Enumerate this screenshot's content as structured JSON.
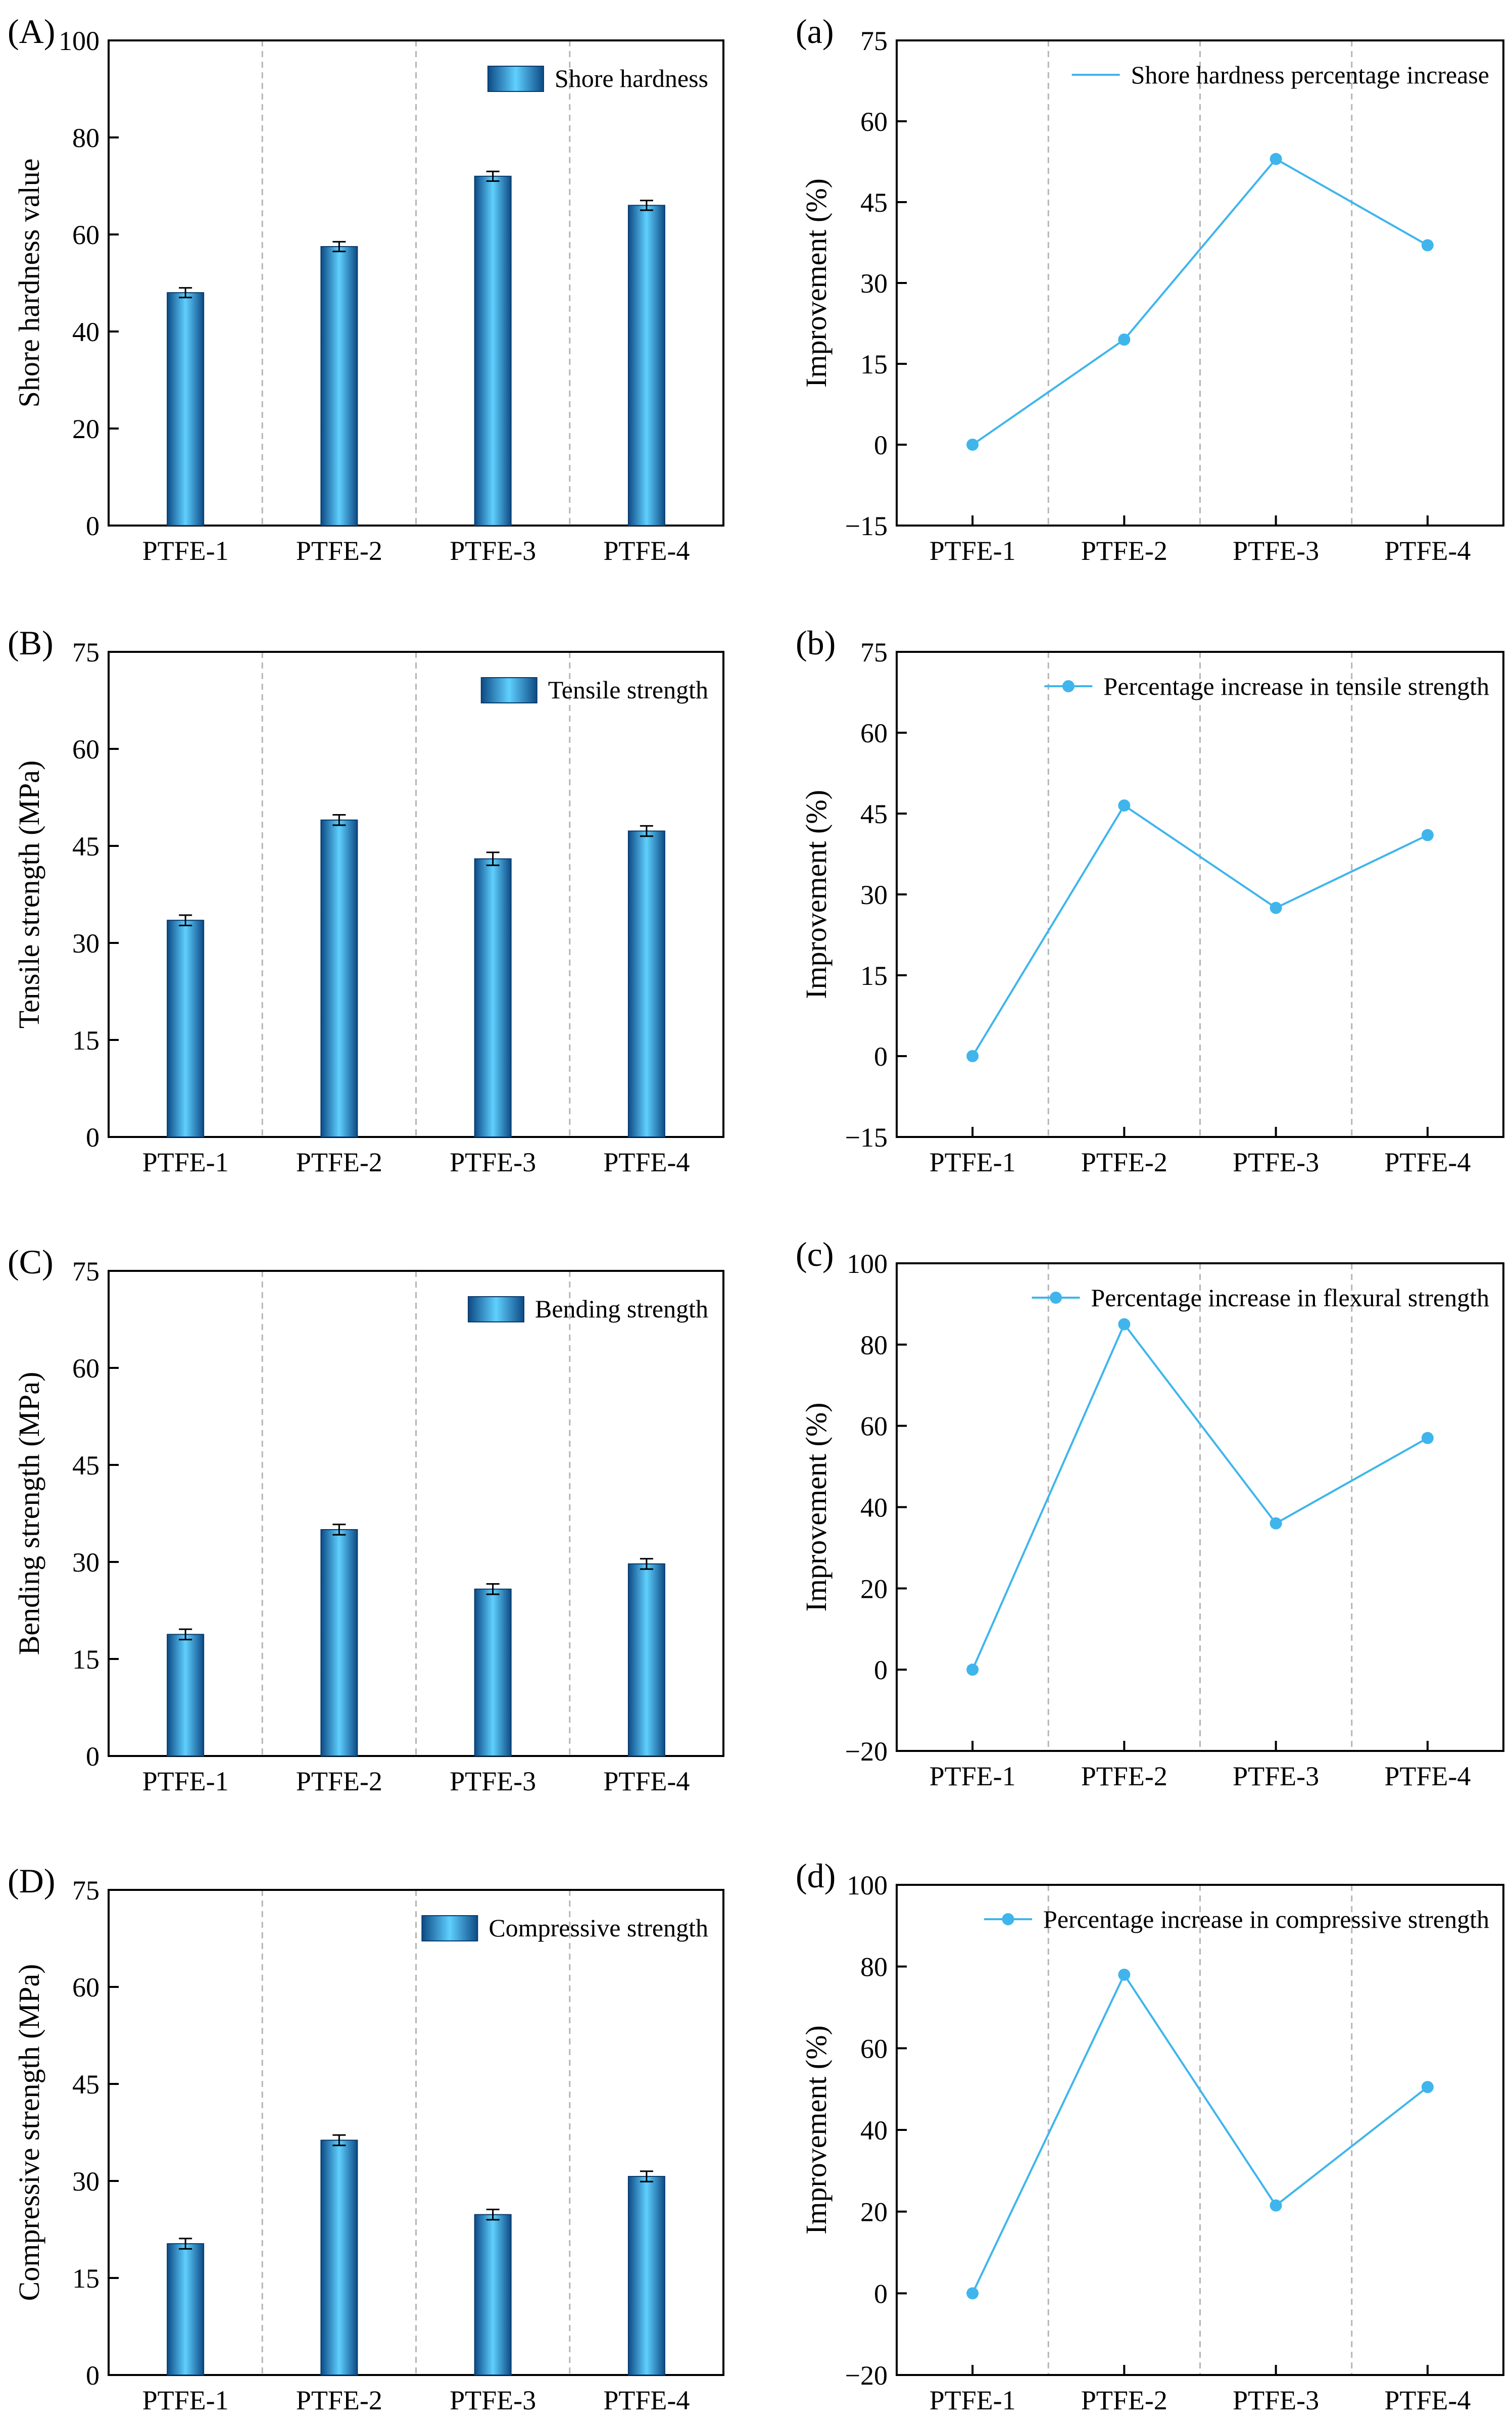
{
  "colors": {
    "bar_dark": "#0d4a85",
    "bar_light": "#5fd0ff",
    "line": "#3fb5ec",
    "grid": "#b5b5b5",
    "axis": "#000000"
  },
  "chart_data": [
    {
      "panel": "(A)",
      "type": "bar",
      "categories": [
        "PTFE-1",
        "PTFE-2",
        "PTFE-3",
        "PTFE-4"
      ],
      "values": [
        48,
        57.5,
        72,
        66
      ],
      "errors": [
        1,
        1,
        1,
        1
      ],
      "ylabel": "Shore hardness value",
      "ylim": [
        0,
        100
      ],
      "yticks": [
        "0",
        "20",
        "40",
        "60",
        "80",
        "100"
      ],
      "legend": "Shore hardness",
      "legend_position": "top-right"
    },
    {
      "panel": "(a)",
      "type": "line",
      "categories": [
        "PTFE-1",
        "PTFE-2",
        "PTFE-3",
        "PTFE-4"
      ],
      "values": [
        0,
        19.5,
        53,
        37
      ],
      "ylabel": "Improvement (%)",
      "ylim": [
        -15,
        75
      ],
      "yticks": [
        "−15",
        "0",
        "15",
        "30",
        "45",
        "60",
        "75"
      ],
      "legend": "Shore hardness percentage increase",
      "legend_marker": false,
      "legend_position": "top-right"
    },
    {
      "panel": "(B)",
      "type": "bar",
      "categories": [
        "PTFE-1",
        "PTFE-2",
        "PTFE-3",
        "PTFE-4"
      ],
      "values": [
        33.5,
        49,
        43,
        47.3
      ],
      "errors": [
        0.8,
        0.8,
        1,
        0.8
      ],
      "ylabel": "Tensile strength (MPa)",
      "ylim": [
        0,
        75
      ],
      "yticks": [
        "0",
        "15",
        "30",
        "45",
        "60",
        "75"
      ],
      "legend": "Tensile strength",
      "legend_position": "top-right"
    },
    {
      "panel": "(b)",
      "type": "line",
      "categories": [
        "PTFE-1",
        "PTFE-2",
        "PTFE-3",
        "PTFE-4"
      ],
      "values": [
        0,
        46.5,
        27.5,
        41
      ],
      "ylabel": "Improvement (%)",
      "ylim": [
        -15,
        75
      ],
      "yticks": [
        "−15",
        "0",
        "15",
        "30",
        "45",
        "60",
        "75"
      ],
      "legend": "Percentage increase in tensile strength",
      "legend_marker": true,
      "legend_position": "top-right"
    },
    {
      "panel": "(C)",
      "type": "bar",
      "categories": [
        "PTFE-1",
        "PTFE-2",
        "PTFE-3",
        "PTFE-4"
      ],
      "values": [
        18.8,
        35,
        25.8,
        29.7
      ],
      "errors": [
        0.8,
        0.8,
        0.8,
        0.8
      ],
      "ylabel": "Bending strength (MPa)",
      "ylim": [
        0,
        75
      ],
      "yticks": [
        "0",
        "15",
        "30",
        "45",
        "60",
        "75"
      ],
      "legend": "Bending strength",
      "legend_position": "top-right"
    },
    {
      "panel": "(c)",
      "type": "line",
      "categories": [
        "PTFE-1",
        "PTFE-2",
        "PTFE-3",
        "PTFE-4"
      ],
      "values": [
        0,
        85,
        36,
        57
      ],
      "ylabel": "Improvement (%)",
      "ylim": [
        -20,
        100
      ],
      "yticks": [
        "−20",
        "0",
        "20",
        "40",
        "60",
        "80",
        "100"
      ],
      "legend": "Percentage increase in flexural strength",
      "legend_marker": true,
      "legend_position": "top-right"
    },
    {
      "panel": "(D)",
      "type": "bar",
      "categories": [
        "PTFE-1",
        "PTFE-2",
        "PTFE-3",
        "PTFE-4"
      ],
      "values": [
        20.3,
        36.3,
        24.8,
        30.7
      ],
      "errors": [
        0.8,
        0.8,
        0.8,
        0.8
      ],
      "ylabel": "Compressive strength (MPa)",
      "ylim": [
        0,
        75
      ],
      "yticks": [
        "0",
        "15",
        "30",
        "45",
        "60",
        "75"
      ],
      "legend": "Compressive strength",
      "legend_position": "top-right"
    },
    {
      "panel": "(d)",
      "type": "line",
      "categories": [
        "PTFE-1",
        "PTFE-2",
        "PTFE-3",
        "PTFE-4"
      ],
      "values": [
        0,
        78,
        21.5,
        50.5
      ],
      "ylabel": "Improvement (%)",
      "ylim": [
        -20,
        100
      ],
      "yticks": [
        "−20",
        "0",
        "20",
        "40",
        "60",
        "80",
        "100"
      ],
      "legend": "Percentage increase in compressive strength",
      "legend_marker": true,
      "legend_position": "top-right"
    }
  ]
}
